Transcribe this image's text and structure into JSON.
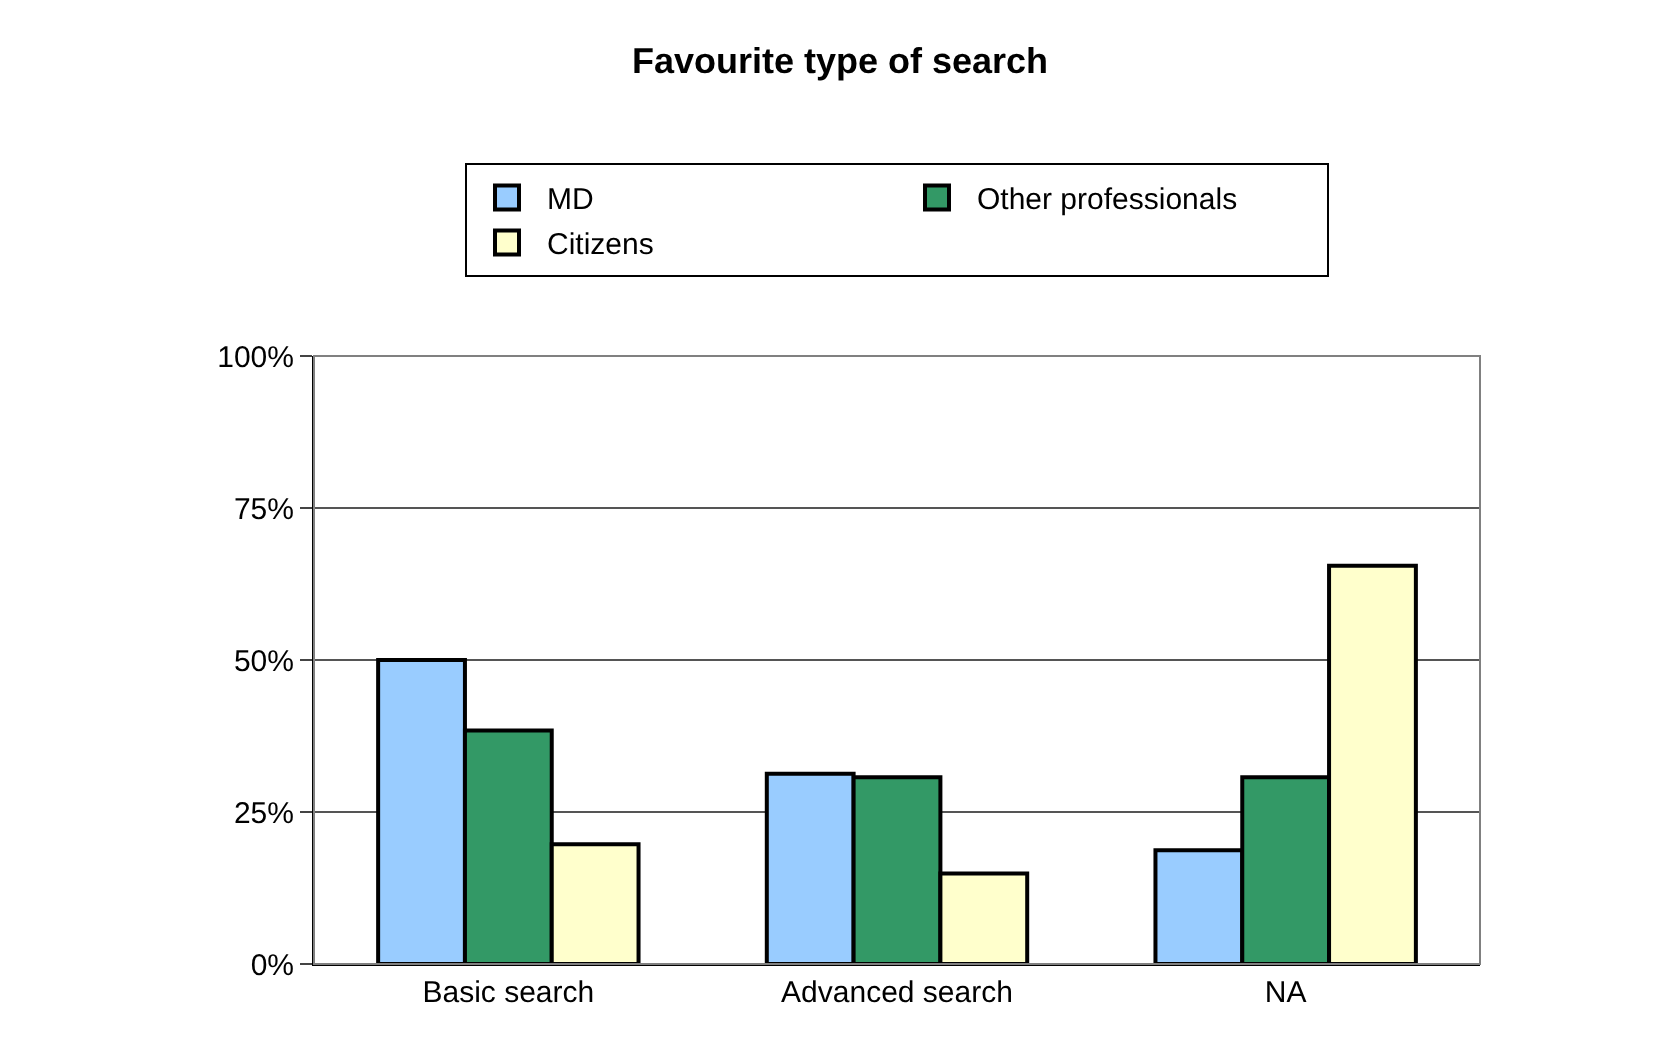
{
  "chart_data": {
    "type": "bar",
    "title": "Favourite type of search",
    "categories": [
      "Basic search",
      "Advanced search",
      "NA"
    ],
    "series": [
      {
        "name": "MD",
        "color": "#99ccff",
        "values": [
          50,
          31.3,
          18.7
        ]
      },
      {
        "name": "Other professionals",
        "color": "#339966",
        "values": [
          38.4,
          30.7,
          30.7
        ]
      },
      {
        "name": "Citizens",
        "color": "#ffffcc",
        "values": [
          19.7,
          14.9,
          65.5
        ]
      }
    ],
    "ylim": [
      0,
      100
    ],
    "yticks": [
      {
        "value": 0,
        "label": "0%"
      },
      {
        "value": 25,
        "label": "25%"
      },
      {
        "value": 50,
        "label": "50%"
      },
      {
        "value": 75,
        "label": "75%"
      },
      {
        "value": 100,
        "label": "100%"
      }
    ],
    "grid": "y",
    "legend": "top"
  }
}
